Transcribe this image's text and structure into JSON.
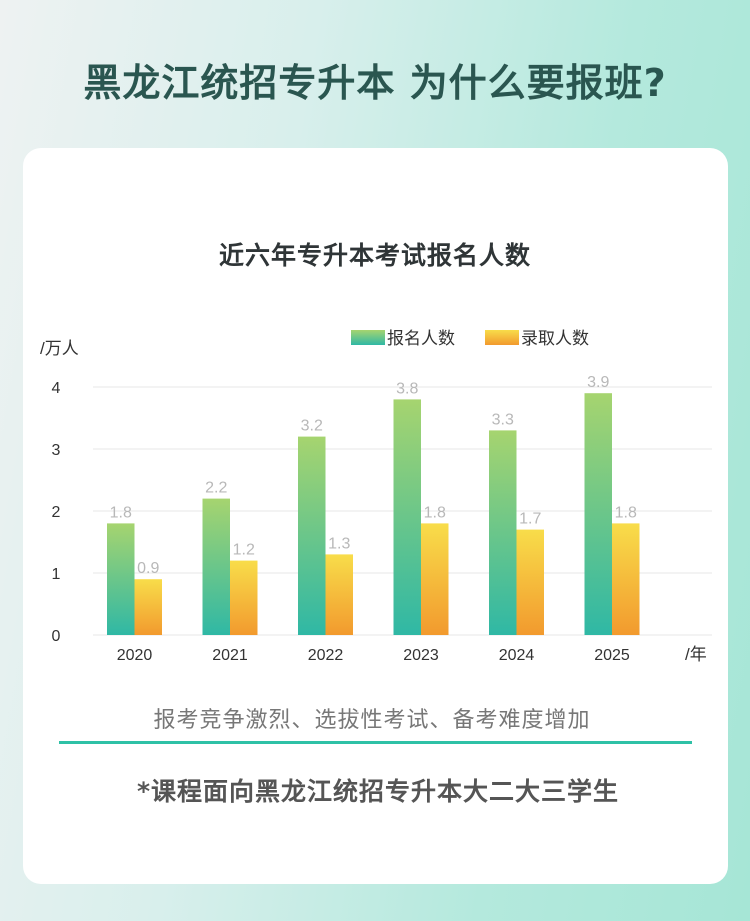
{
  "headline": "黑龙江统招专升本 为什么要报班?",
  "chart_data": {
    "type": "bar",
    "title": "近六年专升本考试报名人数",
    "y_unit": "/万人",
    "x_unit": "/年",
    "categories": [
      "2020",
      "2021",
      "2022",
      "2023",
      "2024",
      "2025"
    ],
    "series": [
      {
        "name": "报名人数",
        "values": [
          1.8,
          2.2,
          3.2,
          3.8,
          3.3,
          3.9
        ],
        "color_top": "#a6d46f",
        "color_bottom": "#2fb8a5"
      },
      {
        "name": "录取人数",
        "values": [
          0.9,
          1.2,
          1.3,
          1.8,
          1.7,
          1.8
        ],
        "color_top": "#f8dd4a",
        "color_bottom": "#f29a2e"
      }
    ],
    "yticks": [
      "0",
      "1",
      "2",
      "3",
      "4"
    ],
    "ylim": [
      0,
      4
    ],
    "grid": true,
    "legend": "top-right"
  },
  "tagline": "报考竞争激烈、选拔性考试、备考难度增加",
  "note": "*课程面向黑龙江统招专升本大二大三学生",
  "colors": {
    "accent": "#2fc1a6",
    "headline": "#2a5650"
  }
}
